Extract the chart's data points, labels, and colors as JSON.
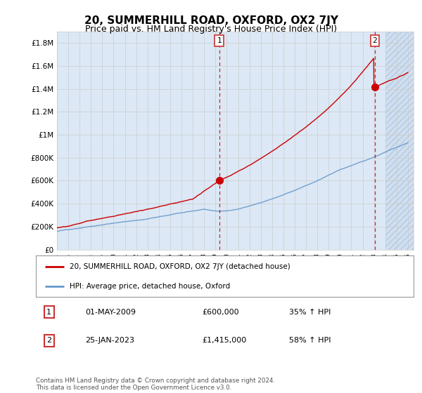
{
  "title": "20, SUMMERHILL ROAD, OXFORD, OX2 7JY",
  "subtitle": "Price paid vs. HM Land Registry's House Price Index (HPI)",
  "ylim": [
    0,
    1900000
  ],
  "yticks": [
    0,
    200000,
    400000,
    600000,
    800000,
    1000000,
    1200000,
    1400000,
    1600000,
    1800000
  ],
  "ytick_labels": [
    "£0",
    "£200K",
    "£400K",
    "£600K",
    "£800K",
    "£1M",
    "£1.2M",
    "£1.4M",
    "£1.6M",
    "£1.8M"
  ],
  "xlim_start": 1995.0,
  "xlim_end": 2026.5,
  "xtick_years": [
    1995,
    1996,
    1997,
    1998,
    1999,
    2000,
    2001,
    2002,
    2003,
    2004,
    2005,
    2006,
    2007,
    2008,
    2009,
    2010,
    2011,
    2012,
    2013,
    2014,
    2015,
    2016,
    2017,
    2018,
    2019,
    2020,
    2021,
    2022,
    2023,
    2024,
    2025,
    2026
  ],
  "red_line_color": "#cc0000",
  "blue_line_color": "#6699cc",
  "dashed_line_color": "#cc0000",
  "grid_color": "#cccccc",
  "bg_color": "#ffffff",
  "plot_bg_color": "#dce8f5",
  "transaction1_date": "01-MAY-2009",
  "transaction1_price": "£600,000",
  "transaction1_hpi": "35% ↑ HPI",
  "transaction1_x": 2009.33,
  "transaction1_y": 600000,
  "transaction2_date": "25-JAN-2023",
  "transaction2_price": "£1,415,000",
  "transaction2_hpi": "58% ↑ HPI",
  "transaction2_x": 2023.07,
  "transaction2_y": 1415000,
  "legend_label1": "20, SUMMERHILL ROAD, OXFORD, OX2 7JY (detached house)",
  "legend_label2": "HPI: Average price, detached house, Oxford",
  "footer_text": "Contains HM Land Registry data © Crown copyright and database right 2024.\nThis data is licensed under the Open Government Licence v3.0.",
  "title_fontsize": 11,
  "subtitle_fontsize": 9
}
